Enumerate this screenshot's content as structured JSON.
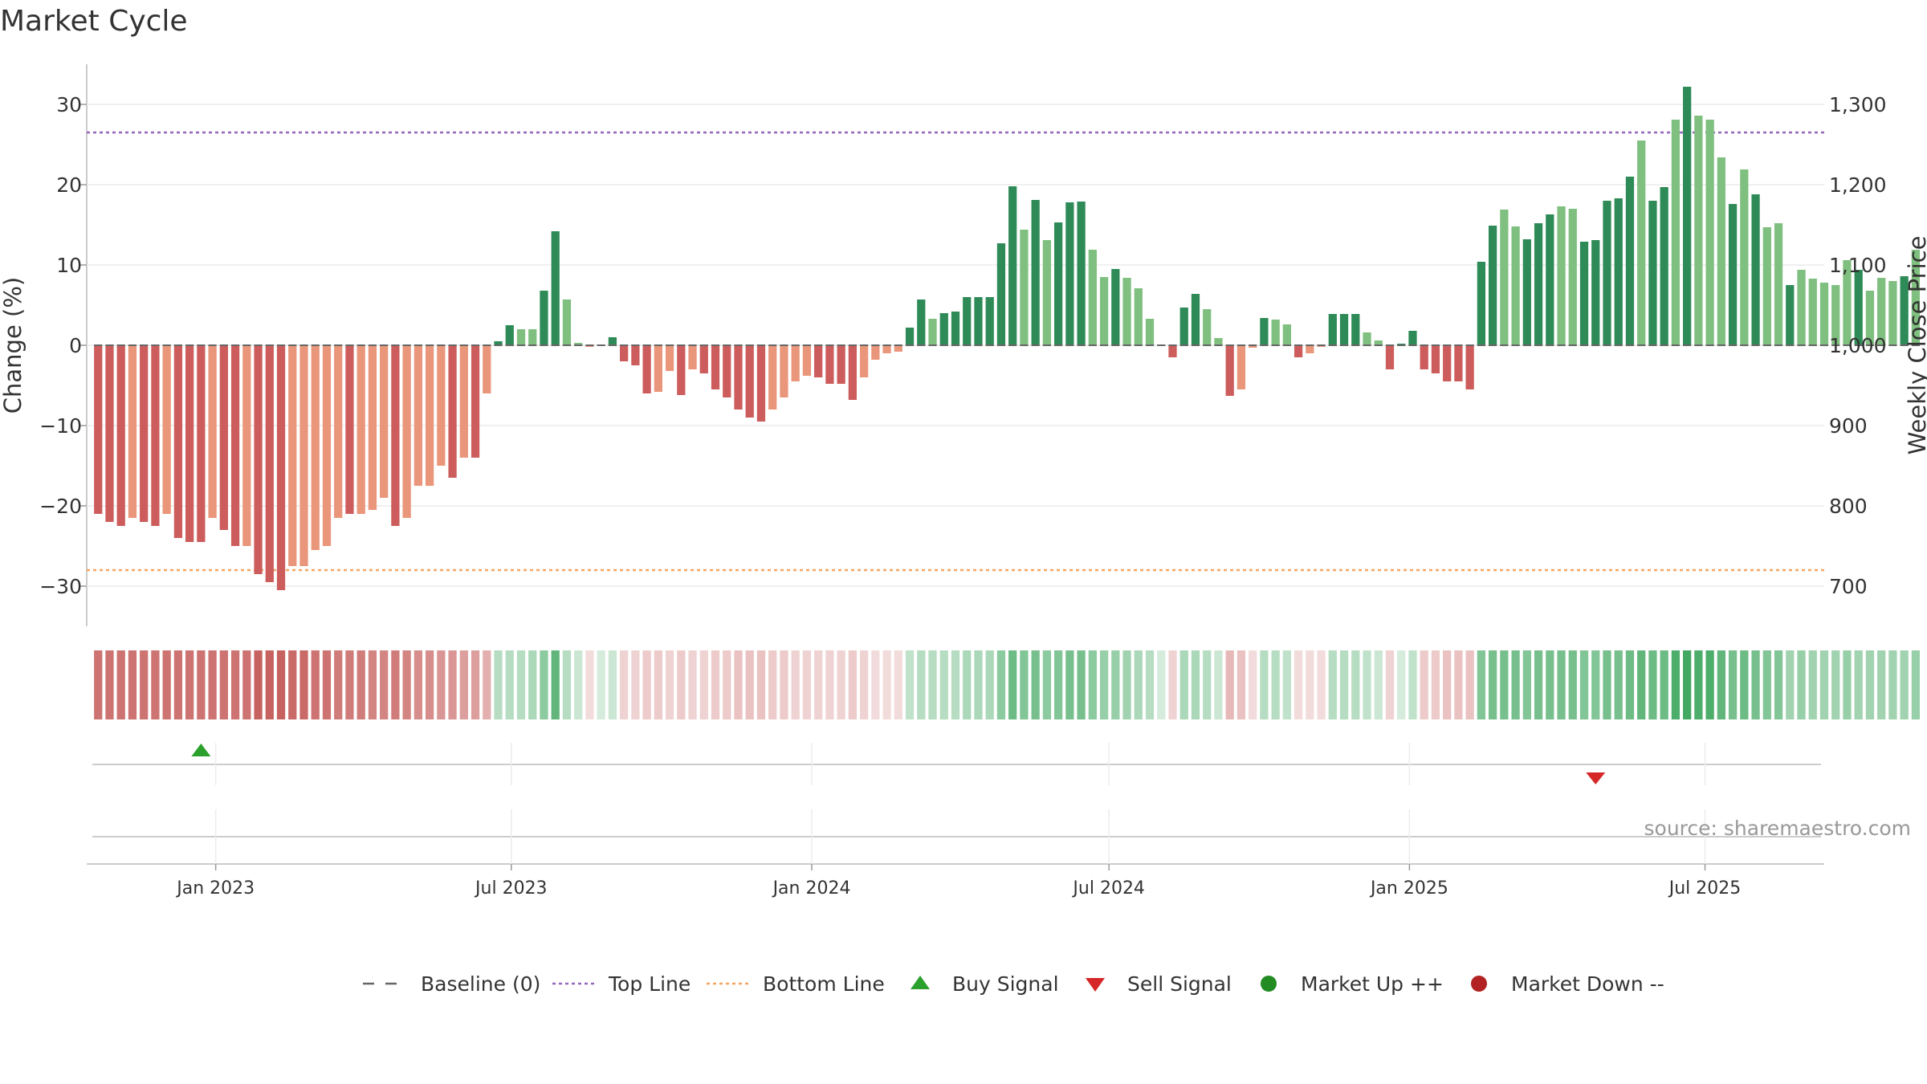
{
  "title": "Market Cycle",
  "source": "source: sharemaestro.com",
  "colors": {
    "up_strong": "#2e8b57",
    "up_weak": "#7fbf7f",
    "down_strong": "#cd5c5c",
    "down_weak": "#e9967a",
    "top_line": "#9467bd",
    "bottom_line": "#f4a460",
    "baseline": "#666666",
    "buy_signal": "#2ca02c",
    "sell_signal": "#d62728",
    "market_up": "#228b22",
    "market_down": "#b22222"
  },
  "chart_data": {
    "type": "bar",
    "title": "Market Cycle",
    "ylabel": "Change (%)",
    "y2label": "Weekly Close Price",
    "ylim": [
      -35,
      35
    ],
    "y2lim": [
      650,
      1350
    ],
    "yticks": [
      "30",
      "20",
      "10",
      "0",
      "−10",
      "−20",
      "−30"
    ],
    "yticks_values": [
      30,
      20,
      10,
      0,
      -10,
      -20,
      -30
    ],
    "y2ticks": [
      "1,300",
      "1,200",
      "1,100",
      "1,000",
      "900",
      "800",
      "700"
    ],
    "y2ticks_values": [
      1300,
      1200,
      1100,
      1000,
      900,
      800,
      700
    ],
    "xlim": [
      "2022-10-14",
      "2025-09-12"
    ],
    "xticks": [
      "Jan 2023",
      "Jul 2023",
      "Jan 2024",
      "Jul 2024",
      "Jan 2025",
      "Jul 2025"
    ],
    "xticks_dates": [
      "2023-01-01",
      "2023-07-01",
      "2024-01-01",
      "2024-07-01",
      "2025-01-01",
      "2025-07-01"
    ],
    "start_date": "2022-10-21",
    "interval_days": 7,
    "values": [
      -21,
      -22,
      -22.5,
      -21.5,
      -22,
      -22.5,
      -21,
      -24,
      -24.5,
      -24.5,
      -21.5,
      -23,
      -25,
      -25,
      -28.5,
      -29.5,
      -30.5,
      -27.5,
      -27.5,
      -25.5,
      -25,
      -21.5,
      -21,
      -21,
      -20.5,
      -19,
      -22.5,
      -21.5,
      -17.5,
      -17.5,
      -15,
      -16.5,
      -14,
      -14,
      -6,
      0.5,
      2.5,
      2,
      2,
      6.8,
      14.2,
      5.7,
      0.3,
      -0.2,
      0,
      1,
      -2,
      -2.5,
      -6,
      -5.8,
      -3.2,
      -6.2,
      -3,
      -3.5,
      -5.5,
      -6.5,
      -8,
      -9,
      -9.5,
      -8,
      -6.5,
      -4.5,
      -3.8,
      -4,
      -4.8,
      -4.8,
      -6.8,
      -4,
      -1.8,
      -1,
      -0.8,
      2.2,
      5.7,
      3.3,
      4,
      4.2,
      6,
      6,
      6,
      12.7,
      19.8,
      14.4,
      18.1,
      13.1,
      15.3,
      17.8,
      17.9,
      11.9,
      8.5,
      9.5,
      8.4,
      7.1,
      3.3,
      0,
      -1.5,
      4.7,
      6.4,
      4.5,
      0.9,
      -6.3,
      -5.5,
      -0.3,
      3.4,
      3.2,
      2.6,
      -1.5,
      -1,
      -0.2,
      3.9,
      3.9,
      3.9,
      1.6,
      0.6,
      -3,
      0.2,
      1.8,
      -3,
      -3.5,
      -4.5,
      -4.5,
      -5.5,
      10.4,
      14.9,
      16.9,
      14.8,
      13.2,
      15.2,
      16.3,
      17.3,
      17,
      12.9,
      13.1,
      18,
      18.3,
      21,
      25.5,
      18,
      19.7,
      28.1,
      32.2,
      28.6,
      28.1,
      23.4,
      17.6,
      21.9,
      18.8,
      14.7,
      15.2,
      7.5,
      9.4,
      8.3,
      7.8,
      7.5,
      10.6,
      9.4,
      6.8,
      8.4,
      8,
      8.6,
      11.9
    ],
    "shades": [
      "s",
      "s",
      "s",
      "w",
      "s",
      "s",
      "w",
      "s",
      "s",
      "s",
      "w",
      "s",
      "s",
      "w",
      "s",
      "s",
      "s",
      "w",
      "w",
      "w",
      "w",
      "w",
      "s",
      "w",
      "w",
      "w",
      "s",
      "w",
      "w",
      "w",
      "w",
      "s",
      "w",
      "s",
      "w",
      "s",
      "s",
      "w",
      "w",
      "s",
      "s",
      "w",
      "w",
      "w",
      "s",
      "s",
      "s",
      "s",
      "s",
      "w",
      "w",
      "s",
      "w",
      "s",
      "s",
      "s",
      "s",
      "s",
      "s",
      "w",
      "w",
      "w",
      "w",
      "s",
      "s",
      "s",
      "s",
      "w",
      "w",
      "w",
      "w",
      "s",
      "s",
      "w",
      "s",
      "s",
      "s",
      "s",
      "s",
      "s",
      "s",
      "w",
      "s",
      "w",
      "s",
      "s",
      "s",
      "w",
      "w",
      "s",
      "w",
      "w",
      "w",
      "s",
      "s",
      "s",
      "s",
      "w",
      "w",
      "s",
      "w",
      "w",
      "s",
      "w",
      "w",
      "s",
      "w",
      "w",
      "s",
      "s",
      "s",
      "w",
      "w",
      "s",
      "s",
      "s",
      "s",
      "s",
      "s",
      "s",
      "s",
      "s",
      "s",
      "w",
      "w",
      "s",
      "s",
      "s",
      "w",
      "w",
      "s",
      "s",
      "s",
      "s",
      "s",
      "w",
      "s",
      "s",
      "w",
      "s",
      "w",
      "w",
      "w",
      "s",
      "w",
      "s",
      "w",
      "w",
      "s",
      "w",
      "w",
      "w",
      "w",
      "w",
      "s",
      "w",
      "w",
      "w",
      "s",
      "w"
    ],
    "top_line": 26.5,
    "bottom_line": -28,
    "heat_strength": [
      0.8,
      0.8,
      0.8,
      0.8,
      0.8,
      0.8,
      0.8,
      0.8,
      0.8,
      0.8,
      0.8,
      0.8,
      0.8,
      0.8,
      0.9,
      0.9,
      0.9,
      0.85,
      0.85,
      0.8,
      0.8,
      0.75,
      0.75,
      0.75,
      0.7,
      0.7,
      0.75,
      0.7,
      0.65,
      0.65,
      0.6,
      0.6,
      0.55,
      0.55,
      0.45,
      0.35,
      0.35,
      0.35,
      0.4,
      0.55,
      0.75,
      0.35,
      0.25,
      0.2,
      0.2,
      0.25,
      0.25,
      0.25,
      0.3,
      0.3,
      0.25,
      0.3,
      0.25,
      0.25,
      0.3,
      0.3,
      0.35,
      0.35,
      0.35,
      0.3,
      0.3,
      0.25,
      0.25,
      0.25,
      0.25,
      0.25,
      0.3,
      0.25,
      0.2,
      0.2,
      0.2,
      0.3,
      0.35,
      0.35,
      0.35,
      0.35,
      0.4,
      0.4,
      0.4,
      0.55,
      0.7,
      0.6,
      0.65,
      0.55,
      0.6,
      0.65,
      0.65,
      0.55,
      0.5,
      0.5,
      0.45,
      0.4,
      0.35,
      0.2,
      0.25,
      0.4,
      0.4,
      0.35,
      0.25,
      0.4,
      0.35,
      0.2,
      0.35,
      0.35,
      0.3,
      0.2,
      0.2,
      0.2,
      0.35,
      0.35,
      0.35,
      0.3,
      0.25,
      0.25,
      0.2,
      0.3,
      0.3,
      0.3,
      0.35,
      0.35,
      0.35,
      0.6,
      0.65,
      0.65,
      0.65,
      0.6,
      0.65,
      0.65,
      0.65,
      0.65,
      0.6,
      0.6,
      0.65,
      0.65,
      0.7,
      0.75,
      0.7,
      0.7,
      0.85,
      0.9,
      0.85,
      0.85,
      0.75,
      0.65,
      0.7,
      0.65,
      0.6,
      0.6,
      0.45,
      0.5,
      0.45,
      0.45,
      0.45,
      0.5,
      0.45,
      0.45,
      0.45,
      0.45,
      0.45,
      0.5
    ],
    "buy_signals": [
      "2022-12-23"
    ],
    "sell_signals": [
      "2025-04-25"
    ]
  },
  "legend": [
    {
      "key": "baseline",
      "label": "Baseline (0)"
    },
    {
      "key": "top",
      "label": "Top Line"
    },
    {
      "key": "bottom",
      "label": "Bottom Line"
    },
    {
      "key": "buy",
      "label": "Buy Signal"
    },
    {
      "key": "sell",
      "label": "Sell Signal"
    },
    {
      "key": "up",
      "label": "Market Up ++"
    },
    {
      "key": "down",
      "label": "Market Down --"
    }
  ]
}
